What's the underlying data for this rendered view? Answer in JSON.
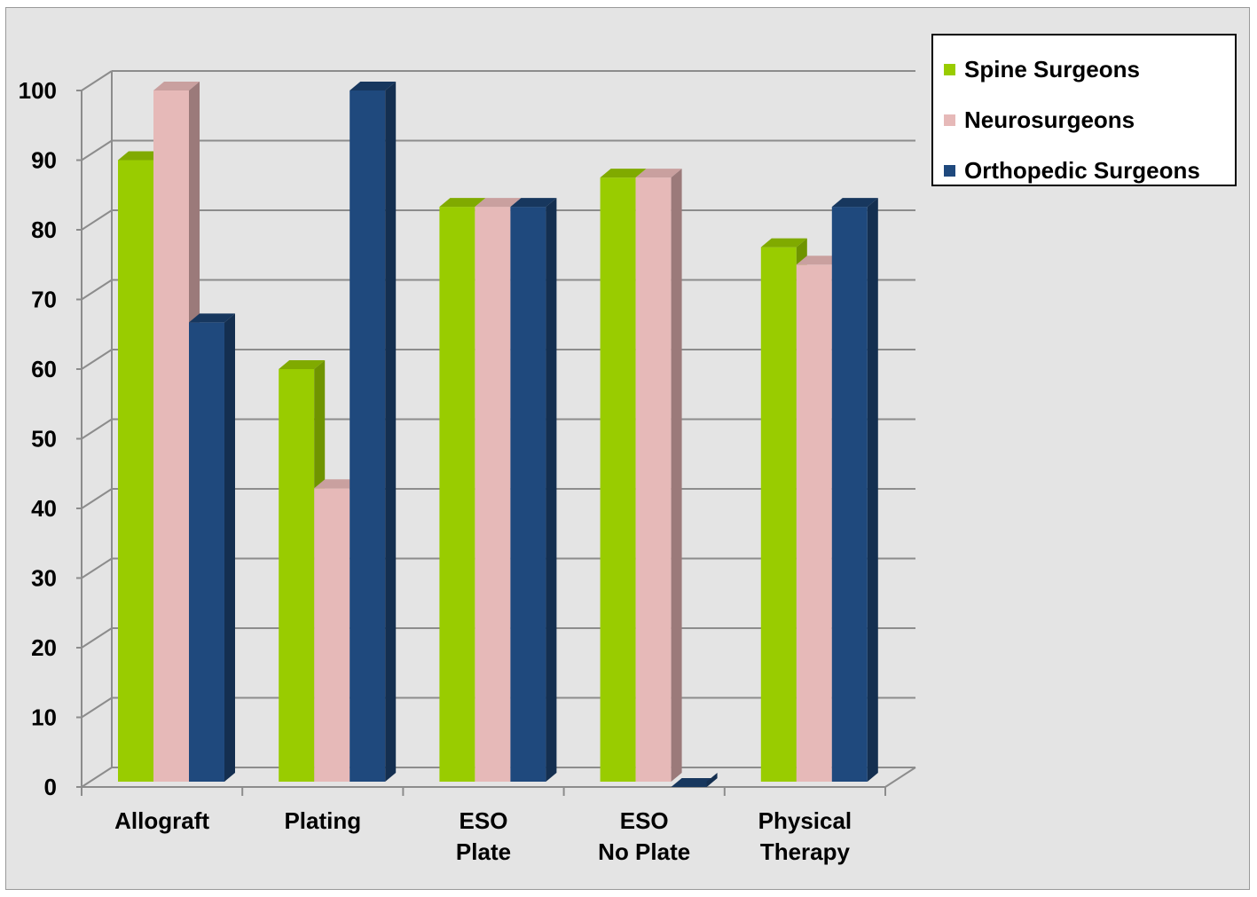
{
  "chart_data": {
    "type": "bar",
    "categories": [
      [
        "Allograft"
      ],
      [
        "Plating"
      ],
      [
        "ESO",
        "Plate"
      ],
      [
        "ESO",
        "No Plate"
      ],
      [
        "Physical",
        "Therapy"
      ]
    ],
    "series": [
      {
        "name": "Spine Surgeons",
        "values": [
          90,
          60,
          83.3,
          87.5,
          77.5
        ],
        "color": "#99cc00",
        "side_color": "#6f9400",
        "top_color": "#80aa00"
      },
      {
        "name": "Neurosurgeons",
        "values": [
          100,
          42.9,
          83.3,
          87.5,
          75
        ],
        "color": "#e6b9b8",
        "side_color": "#9b7a7a",
        "top_color": "#c9a09f"
      },
      {
        "name": "Orthopedic Surgeons",
        "values": [
          66.7,
          100,
          83.3,
          0,
          83.3
        ],
        "color": "#1f497d",
        "side_color": "#142f50",
        "top_color": "#17375e"
      }
    ],
    "y_ticks": [
      "0",
      "10",
      "20",
      "30",
      "40",
      "50",
      "60",
      "70",
      "80",
      "90",
      "100"
    ],
    "ylim": [
      0,
      100
    ],
    "grid": true,
    "legend_position": "top-right",
    "style": "3d-clustered-column"
  }
}
